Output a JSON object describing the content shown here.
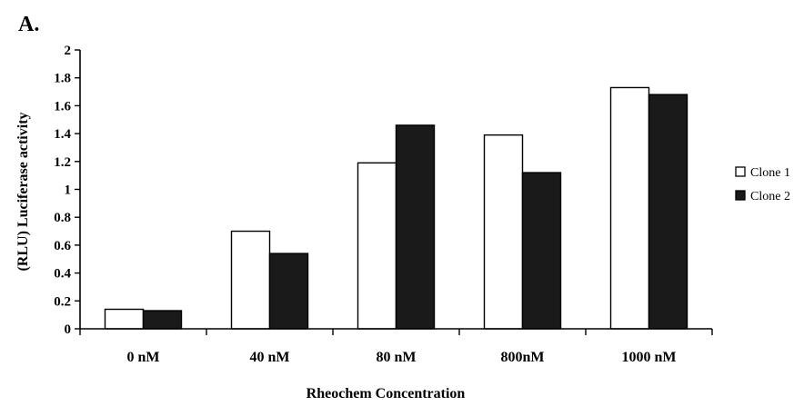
{
  "panel_label": "A.",
  "chart_data": {
    "type": "bar",
    "categories": [
      "0 nM",
      "40 nM",
      "80 nM",
      "800nM",
      "1000 nM"
    ],
    "series": [
      {
        "name": "Clone 1",
        "values": [
          0.14,
          0.7,
          1.19,
          1.39,
          1.73
        ],
        "color": "#ffffff"
      },
      {
        "name": "Clone 2",
        "values": [
          0.13,
          0.54,
          1.46,
          1.12,
          1.68
        ],
        "color": "#1a1a1a"
      }
    ],
    "xlabel": "Rheochem Concentration",
    "ylabel": "(RLU) Luciferase activity",
    "ylim": [
      0,
      2
    ],
    "yticks": [
      "0",
      "0.2",
      "0.4",
      "0.6",
      "0.8",
      "1",
      "1.2",
      "1.4",
      "1.6",
      "1.8",
      "2"
    ],
    "legend_position": "right",
    "grid": false
  }
}
